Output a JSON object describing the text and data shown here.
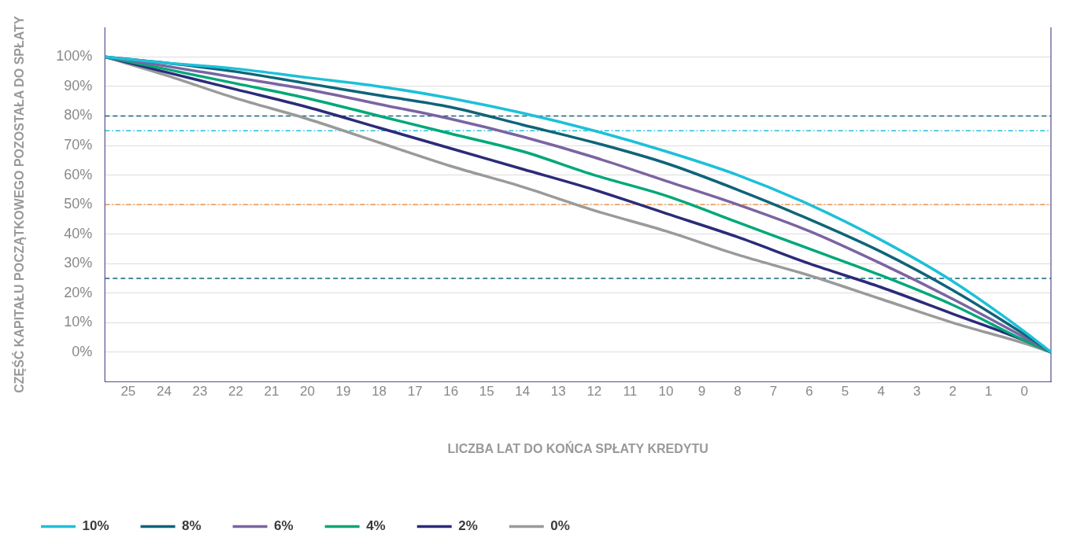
{
  "chart_data": {
    "type": "line",
    "xlabel": "LICZBA LAT DO KOŃCA SPŁATY KREDYTU",
    "ylabel": "CZĘŚĆ KAPITAŁU POCZĄTKOWEGO POZOSTAŁA DO SPŁATY",
    "xlim": [
      25.65,
      -0.74
    ],
    "xticks": [
      25,
      24,
      23,
      22,
      21,
      20,
      19,
      18,
      17,
      16,
      15,
      14,
      13,
      12,
      11,
      10,
      9,
      8,
      7,
      6,
      5,
      4,
      3,
      2,
      1,
      0
    ],
    "ylim": [
      -10,
      110
    ],
    "yticks": [
      {
        "value": 0,
        "label": "0%"
      },
      {
        "value": 10,
        "label": "10%"
      },
      {
        "value": 20,
        "label": "20%"
      },
      {
        "value": 30,
        "label": "30%"
      },
      {
        "value": 40,
        "label": "40%"
      },
      {
        "value": 50,
        "label": "50%"
      },
      {
        "value": 60,
        "label": "60%"
      },
      {
        "value": 70,
        "label": "70%"
      },
      {
        "value": 80,
        "label": "80%"
      },
      {
        "value": 90,
        "label": "90%"
      },
      {
        "value": 100,
        "label": "100%"
      }
    ],
    "x": [
      25.65,
      24,
      22,
      20,
      18,
      16,
      14,
      12,
      10,
      8,
      6,
      4,
      2,
      0,
      -0.74
    ],
    "grid": "y",
    "legend": "bottom left",
    "marker": "none",
    "line_style": "solid",
    "series": [
      {
        "name": "10%",
        "color": "#1ec0d8",
        "values": [
          100,
          98,
          96,
          93,
          90,
          86,
          81,
          75,
          68,
          60,
          50,
          38,
          24,
          7,
          0
        ]
      },
      {
        "name": "8%",
        "color": "#0f6479",
        "values": [
          100,
          98,
          95,
          91,
          87,
          83,
          77,
          71,
          64,
          55,
          45,
          34,
          21,
          6,
          0
        ]
      },
      {
        "name": "6%",
        "color": "#7b64a2",
        "values": [
          100,
          97,
          93,
          89,
          84,
          79,
          73,
          66,
          58,
          50,
          41,
          30,
          18,
          5,
          0
        ]
      },
      {
        "name": "4%",
        "color": "#00a878",
        "values": [
          100,
          96,
          91,
          86,
          80,
          74,
          68,
          60,
          53,
          44,
          35,
          26,
          16,
          4,
          0
        ]
      },
      {
        "name": "2%",
        "color": "#2b2b7a",
        "values": [
          100,
          95,
          89,
          83,
          76,
          69,
          62,
          55,
          47,
          39,
          30,
          22,
          13,
          4,
          0
        ]
      },
      {
        "name": "0%",
        "color": "#9a9a9a",
        "values": [
          100,
          94,
          86,
          79,
          71,
          63,
          56,
          48,
          41,
          33,
          26,
          18,
          10,
          3,
          0
        ]
      }
    ],
    "ref_lines": [
      {
        "axis": "y",
        "value": 80,
        "color": "#0f6479",
        "line_style": "dashed"
      },
      {
        "axis": "y",
        "value": 75,
        "color": "#1ec0d8",
        "line_style": "dashdot"
      },
      {
        "axis": "y",
        "value": 50,
        "color": "#f0a060",
        "line_style": "dashdot"
      },
      {
        "axis": "y",
        "value": 25,
        "color": "#0f6479",
        "line_style": "dashed"
      }
    ]
  }
}
